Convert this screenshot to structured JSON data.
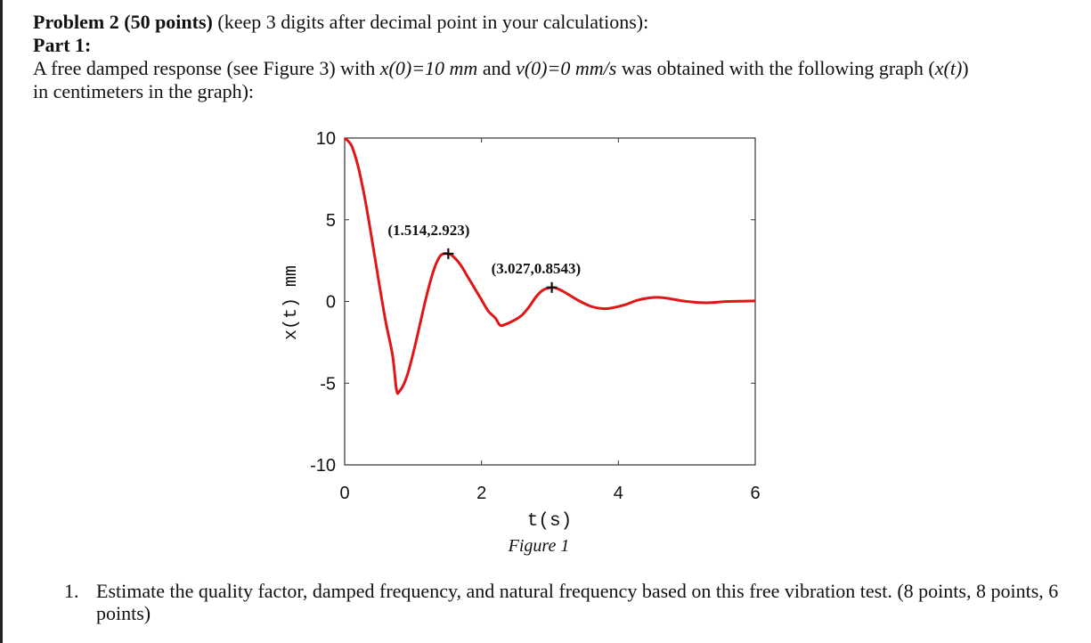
{
  "heading": {
    "problem_label": "Problem 2 (50 points)",
    "problem_note": "(keep 3 digits after decimal point in your calculations):",
    "part_label": "Part 1:"
  },
  "intro": {
    "line1_a": "A free damped response (see Figure 3) with ",
    "x0_expr": "x(0)=10 mm",
    "line1_and": " and ",
    "v0_expr": "v(0)=0 mm/s",
    "line1_b": " was obtained with the following graph (",
    "xt_expr": "x(t)",
    "line2": "in centimeters in the graph):"
  },
  "figure": {
    "caption": "Figure 1",
    "xlabel": "t(s)",
    "ylabel": "x(t) mm",
    "xticks": [
      "0",
      "2",
      "4",
      "6"
    ],
    "yticks": [
      "10",
      "5",
      "0",
      "-5",
      "-10"
    ],
    "annotations": [
      {
        "label": "(1.514,2.923)",
        "t": 1.514,
        "x": 2.923
      },
      {
        "label": "(3.027,0.8543)",
        "t": 3.027,
        "x": 0.8543
      }
    ],
    "line_color": "#e01515"
  },
  "chart_data": {
    "type": "line",
    "title": "",
    "xlabel": "t(s)",
    "ylabel": "x(t) mm",
    "xlim": [
      0,
      6
    ],
    "ylim": [
      -10,
      10
    ],
    "series": [
      {
        "x": [
          0,
          0.1,
          0.2,
          0.3,
          0.4,
          0.5,
          0.6,
          0.7,
          0.757,
          0.8,
          0.9,
          1.0,
          1.1,
          1.2,
          1.3,
          1.4,
          1.514,
          1.6,
          1.7,
          1.8,
          1.9,
          2.0,
          2.1,
          2.2,
          2.27,
          2.35,
          2.5,
          2.6,
          2.7,
          2.8,
          2.9,
          3.027,
          3.1,
          3.2,
          3.4,
          3.6,
          3.784,
          3.9,
          4.1,
          4.3,
          4.541,
          4.7,
          5.0,
          5.298,
          5.6,
          6.0
        ],
        "y": [
          10.0,
          9.53,
          8.2,
          6.19,
          3.76,
          1.2,
          -1.24,
          -3.3,
          -5.4,
          -5.5,
          -4.7,
          -3.2,
          -1.4,
          0.4,
          1.9,
          2.8,
          2.923,
          2.7,
          2.2,
          1.5,
          0.8,
          0.1,
          -0.6,
          -1.0,
          -1.45,
          -1.4,
          -1.1,
          -0.8,
          -0.3,
          0.3,
          0.7,
          0.8543,
          0.8,
          0.6,
          0.1,
          -0.3,
          -0.44,
          -0.4,
          -0.2,
          0.1,
          0.25,
          0.2,
          0.0,
          -0.08,
          0.0,
          0.03
        ]
      }
    ],
    "annotations": [
      {
        "label": "(1.514,2.923)",
        "x": 1.514,
        "y": 2.923
      },
      {
        "label": "(3.027,0.8543)",
        "x": 3.027,
        "y": 0.8543
      }
    ],
    "grid": false,
    "xticks": [
      0,
      2,
      4,
      6
    ],
    "yticks": [
      10,
      5,
      0,
      -5,
      -10
    ]
  },
  "question": {
    "number": "1.",
    "text": "Estimate the quality factor, damped frequency, and natural frequency based on this free vibration test. (8 points, 8 points, 6 points)"
  }
}
